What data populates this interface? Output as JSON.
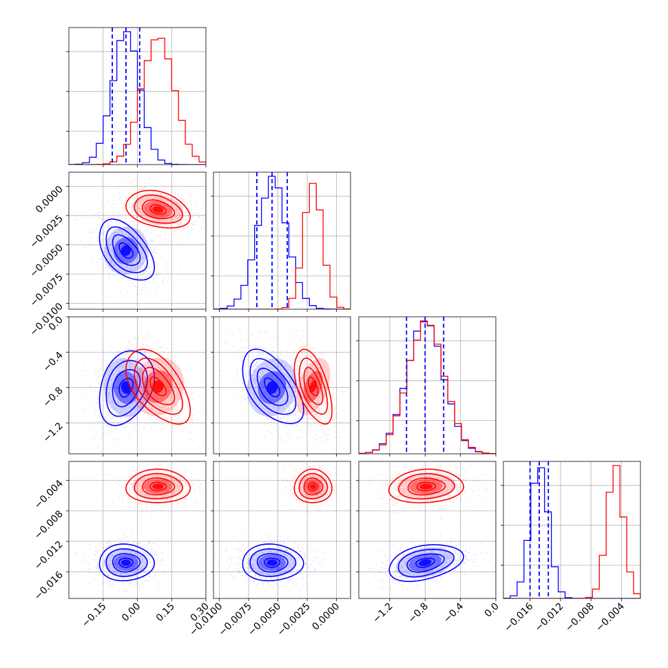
{
  "chart_data": {
    "type": "corner",
    "parameters": 4,
    "colors": {
      "series_a": "#0000ff",
      "series_b": "#ff0000"
    },
    "grid": true,
    "legend": "none",
    "ranges": [
      [
        -0.3,
        0.3
      ],
      [
        -0.0105,
        0.0012
      ],
      [
        -1.55,
        0.0
      ],
      [
        -0.0195,
        -0.0015
      ]
    ],
    "ticks": [
      [
        "−0.15",
        "0.00",
        "0.15",
        "0.30"
      ],
      [
        "−0.0100",
        "−0.0075",
        "−0.0050",
        "−0.0025",
        "0.0000"
      ],
      [
        "−1.2",
        "−0.8",
        "−0.4",
        "0.0"
      ],
      [
        "−0.016",
        "−0.012",
        "−0.008",
        "−0.004"
      ]
    ],
    "tick_values": [
      [
        -0.15,
        0.0,
        0.15,
        0.3
      ],
      [
        -0.01,
        -0.0075,
        -0.005,
        -0.0025,
        0.0
      ],
      [
        -1.2,
        -0.8,
        -0.4,
        0.0
      ],
      [
        -0.016,
        -0.012,
        -0.008,
        -0.004
      ]
    ],
    "series": [
      {
        "color": "#0000ff",
        "means": [
          -0.05,
          -0.0055,
          -0.8,
          -0.0148
        ],
        "stds": [
          0.06,
          0.0013,
          0.21,
          0.0012
        ],
        "quantiles_dashed": true
      },
      {
        "color": "#ff0000",
        "means": [
          0.09,
          -0.002,
          -0.79,
          -0.0048
        ],
        "stds": [
          0.07,
          0.0008,
          0.21,
          0.0011
        ]
      }
    ],
    "correlations": [
      {
        "pair": [
          1,
          0
        ],
        "series_a": -0.5,
        "series_b": -0.3
      },
      {
        "pair": [
          2,
          0
        ],
        "series_a": 0.3,
        "series_b": -0.55
      },
      {
        "pair": [
          2,
          1
        ],
        "series_a": -0.55,
        "series_b": -0.55
      },
      {
        "pair": [
          3,
          0
        ],
        "series_a": 0.0,
        "series_b": 0.0
      },
      {
        "pair": [
          3,
          1
        ],
        "series_a": 0.0,
        "series_b": 0.0
      },
      {
        "pair": [
          3,
          2
        ],
        "series_a": 0.35,
        "series_b": 0.1
      }
    ]
  }
}
